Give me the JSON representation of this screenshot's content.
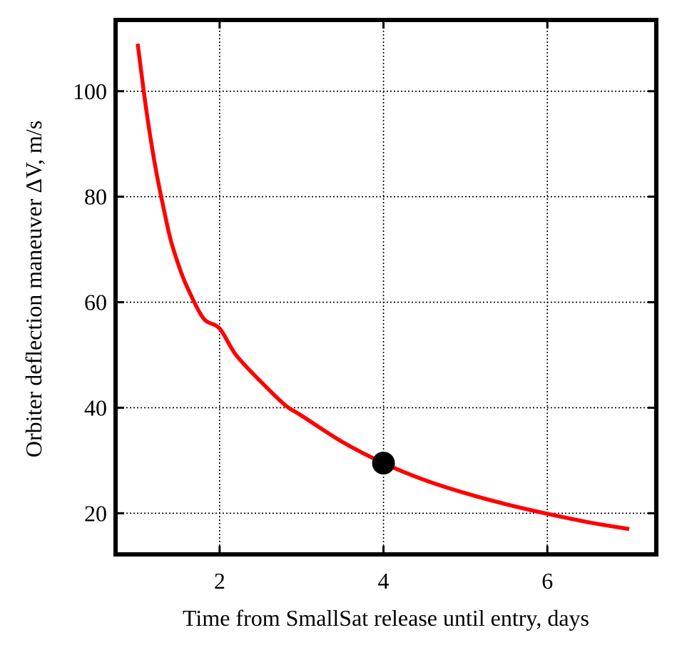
{
  "chart_data": {
    "type": "line",
    "title": "",
    "xlabel": "Time from SmallSat release until entry, days",
    "ylabel": "Orbiter deflection maneuver ΔV, m/s",
    "xlim": [
      0.73,
      7.33
    ],
    "ylim": [
      12.2,
      113.5
    ],
    "xticks": [
      2,
      4,
      6
    ],
    "yticks": [
      20,
      40,
      60,
      80,
      100
    ],
    "grid": true,
    "series": [
      {
        "color": "#ff0000",
        "x": [
          1.0,
          1.1,
          1.2,
          1.3,
          1.4,
          1.5,
          1.6,
          1.8,
          2.0,
          2.2,
          2.5,
          2.8,
          3.0,
          3.5,
          4.0,
          4.5,
          5.0,
          5.5,
          6.0,
          6.5,
          7.0
        ],
        "y": [
          109,
          97,
          87,
          79,
          72,
          67,
          63,
          57,
          55,
          50,
          45,
          40.5,
          38.5,
          33.5,
          29.5,
          26.3,
          23.8,
          21.7,
          19.9,
          18.3,
          17.0
        ]
      }
    ],
    "markers": [
      {
        "x": 4.0,
        "y": 29.5,
        "color": "#000000"
      }
    ]
  }
}
